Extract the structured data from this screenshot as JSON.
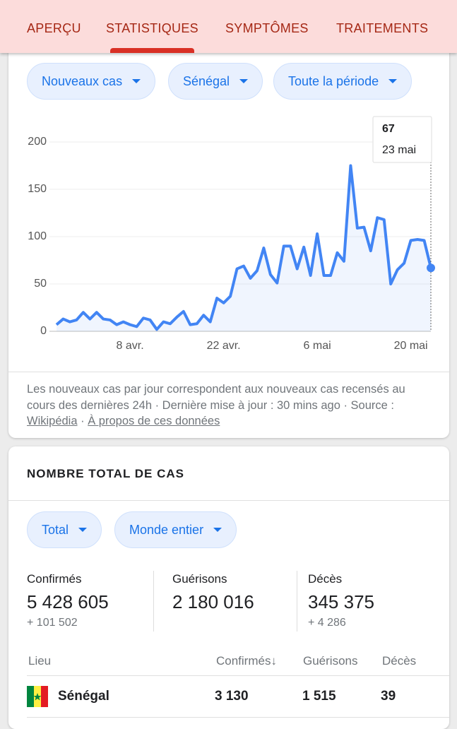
{
  "tabs": [
    "APERÇU",
    "STATISTIQUES",
    "SYMPTÔMES",
    "TRAITEMENTS"
  ],
  "active_tab": 1,
  "filters": [
    "Nouveaux cas",
    "Sénégal",
    "Toute la période"
  ],
  "chart_data": {
    "type": "line",
    "categories": [
      null,
      null,
      null,
      null,
      null,
      null,
      null,
      null,
      null,
      null,
      null,
      "8 avr.",
      null,
      null,
      null,
      null,
      null,
      null,
      null,
      null,
      null,
      null,
      null,
      null,
      null,
      "22 avr.",
      null,
      null,
      null,
      null,
      null,
      null,
      null,
      null,
      null,
      null,
      null,
      null,
      null,
      "6 mai",
      null,
      null,
      null,
      null,
      null,
      null,
      null,
      null,
      null,
      null,
      null,
      null,
      null,
      "20 mai",
      null,
      null,
      null
    ],
    "values": [
      7,
      13,
      10,
      12,
      20,
      13,
      20,
      13,
      12,
      7,
      10,
      7,
      5,
      14,
      12,
      2,
      10,
      8,
      15,
      21,
      7,
      8,
      17,
      10,
      35,
      30,
      37,
      66,
      69,
      56,
      64,
      88,
      60,
      51,
      90,
      90,
      66,
      89,
      59,
      103,
      59,
      59,
      83,
      74,
      175,
      109,
      110,
      85,
      120,
      118,
      50,
      65,
      72,
      96,
      97,
      96,
      67
    ],
    "color": "#4285f4",
    "ylim": [
      0,
      200
    ],
    "yticks": [
      0,
      50,
      100,
      150,
      200
    ],
    "grid": true,
    "tooltip": {
      "value": 67,
      "label": "23 mai"
    }
  },
  "footnote": {
    "text": "Les nouveaux cas par jour correspondent aux nouveaux cas recensés au cours des dernières 24h · Dernière mise à jour : 30 mins ago · Source : ",
    "source_link": "Wikipédia",
    "sep": " · ",
    "about_link": "À propos de ces données"
  },
  "totals": {
    "title": "NOMBRE TOTAL DE CAS",
    "filters": [
      "Total",
      "Monde entier"
    ],
    "stats": [
      {
        "label": "Confirmés",
        "value": "5 428 605",
        "delta": "+ 101 502"
      },
      {
        "label": "Guérisons",
        "value": "2 180 016"
      },
      {
        "label": "Décès",
        "value": "345 375",
        "delta": "+ 4 286"
      }
    ]
  },
  "table": {
    "header": [
      "Lieu",
      "Confirmés↓",
      "Guérisons",
      "Décès"
    ],
    "rows": [
      [
        "Sénégal",
        "3 130",
        "1 515",
        "39"
      ]
    ]
  }
}
